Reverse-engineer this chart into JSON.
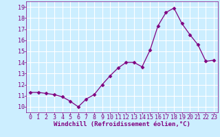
{
  "x": [
    0,
    1,
    2,
    3,
    4,
    5,
    6,
    7,
    8,
    9,
    10,
    11,
    12,
    13,
    14,
    15,
    16,
    17,
    18,
    19,
    20,
    21,
    22,
    23
  ],
  "y": [
    11.3,
    11.3,
    11.2,
    11.1,
    10.9,
    10.5,
    10.0,
    10.7,
    11.1,
    12.0,
    12.8,
    13.5,
    14.0,
    14.0,
    13.6,
    15.1,
    17.3,
    18.5,
    18.9,
    17.5,
    16.5,
    15.6,
    14.1,
    14.2
  ],
  "line_color": "#800080",
  "marker": "D",
  "marker_size": 2.5,
  "bg_color": "#cceeff",
  "grid_color": "#ffffff",
  "xlabel": "Windchill (Refroidissement éolien,°C)",
  "xlabel_fontsize": 6.5,
  "tick_fontsize": 6,
  "ylim": [
    9.5,
    19.5
  ],
  "yticks": [
    10,
    11,
    12,
    13,
    14,
    15,
    16,
    17,
    18,
    19
  ],
  "xticks": [
    0,
    1,
    2,
    3,
    4,
    5,
    6,
    7,
    8,
    9,
    10,
    11,
    12,
    13,
    14,
    15,
    16,
    17,
    18,
    19,
    20,
    21,
    22,
    23
  ],
  "xlim": [
    -0.5,
    23.5
  ]
}
